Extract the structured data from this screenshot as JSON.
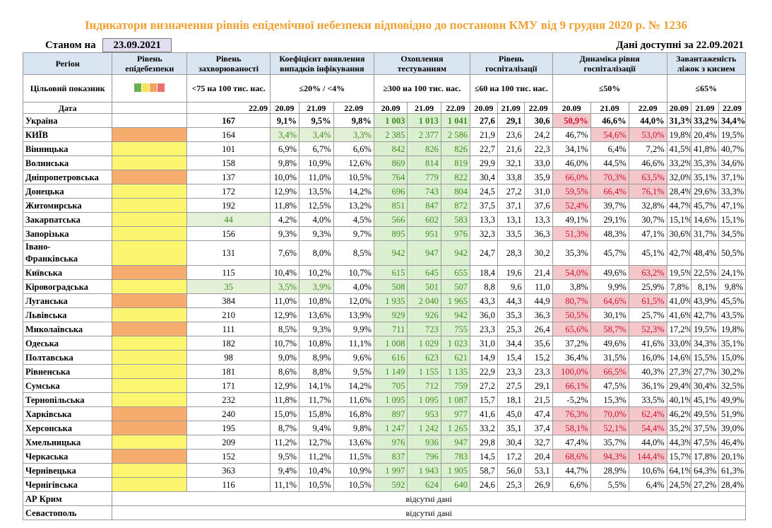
{
  "title": "Індикатори визначення рівнів епідемічної небезпеки відповідно до постанови КМУ від 9 грудня 2020 р. № 1236",
  "as_of_label": "Станом на",
  "as_of_date": "23.09.2021",
  "data_available": "Дані доступні за  22.09.2021",
  "headers": {
    "region": "Регіон",
    "level": "Рівень епідебезпеки",
    "incidence": "Рівень захворюваності",
    "detection": "Коефіцієнт виявлення випадків інфікування",
    "testing": "Охоплення тестуванням",
    "hosp": "Рівень госпіталізації",
    "hosp_dyn": "Динаміка рівня госпіталізації",
    "oxygen": "Завантаженість ліжок з киснем"
  },
  "targets": {
    "label": "Цільовий показник",
    "incidence": "<75 на 100 тис. нас.",
    "detection": "≤20% / <4%",
    "testing": "≥300 на 100 тис. нас.",
    "hosp": "≤60 на 100 тис. нас.",
    "hosp_dyn": "≤50%",
    "oxygen": "≤65%"
  },
  "legend_colors": [
    "#6ab04c",
    "#f2e55c",
    "#f4a460",
    "#e8706b"
  ],
  "dates": {
    "label": "Дата",
    "single": "22.09",
    "d1": "20.09",
    "d2": "21.09",
    "d3": "22.09"
  },
  "rows": [
    {
      "name": "Україна",
      "level": "",
      "lvl_class": "",
      "inc": "167",
      "det": [
        "9,1%",
        "9,5%",
        "9,8%"
      ],
      "test": [
        "1 003",
        "1 013",
        "1 041"
      ],
      "hosp": [
        "27,6",
        "29,1",
        "30,6"
      ],
      "dyn": [
        "50,9%",
        "46,6%",
        "44,0%"
      ],
      "oxy": [
        "31,3%",
        "33,2%",
        "34,4%"
      ]
    },
    {
      "name": "КИЇВ",
      "lvl_class": "orange",
      "inc": "164",
      "det": [
        "3,4%",
        "3,4%",
        "3,3%"
      ],
      "test": [
        "2 385",
        "2 377",
        "2 586"
      ],
      "hosp": [
        "21,9",
        "23,6",
        "24,2"
      ],
      "dyn": [
        "46,7%",
        "54,6%",
        "53,0%"
      ],
      "oxy": [
        "19,8%",
        "20,4%",
        "19,5%"
      ]
    },
    {
      "name": "Вінницька",
      "lvl_class": "yellow",
      "inc": "101",
      "det": [
        "6,9%",
        "6,7%",
        "6,6%"
      ],
      "test": [
        "842",
        "826",
        "826"
      ],
      "hosp": [
        "22,7",
        "21,6",
        "22,3"
      ],
      "dyn": [
        "34,1%",
        "6,4%",
        "7,2%"
      ],
      "oxy": [
        "41,5%",
        "41,8%",
        "40,7%"
      ]
    },
    {
      "name": "Волинська",
      "lvl_class": "yellow",
      "inc": "158",
      "det": [
        "9,8%",
        "10,9%",
        "12,6%"
      ],
      "test": [
        "869",
        "814",
        "819"
      ],
      "hosp": [
        "29,9",
        "32,1",
        "33,0"
      ],
      "dyn": [
        "46,0%",
        "44,5%",
        "46,6%"
      ],
      "oxy": [
        "33,2%",
        "35,3%",
        "34,6%"
      ]
    },
    {
      "name": "Дніпропетровська",
      "lvl_class": "orange",
      "inc": "137",
      "det": [
        "10,0%",
        "11,0%",
        "10,5%"
      ],
      "test": [
        "764",
        "779",
        "822"
      ],
      "hosp": [
        "30,4",
        "33,8",
        "35,9"
      ],
      "dyn": [
        "66,0%",
        "70,3%",
        "63,5%"
      ],
      "oxy": [
        "32,0%",
        "35,1%",
        "37,1%"
      ]
    },
    {
      "name": "Донецька",
      "lvl_class": "yellow",
      "inc": "172",
      "det": [
        "12,9%",
        "13,5%",
        "14,2%"
      ],
      "test": [
        "696",
        "743",
        "804"
      ],
      "hosp": [
        "24,5",
        "27,2",
        "31,0"
      ],
      "dyn": [
        "59,5%",
        "66,4%",
        "76,1%"
      ],
      "oxy": [
        "28,4%",
        "29,6%",
        "33,3%"
      ]
    },
    {
      "name": "Житомирська",
      "lvl_class": "yellow",
      "inc": "192",
      "det": [
        "11,8%",
        "12,5%",
        "13,2%"
      ],
      "test": [
        "851",
        "847",
        "872"
      ],
      "hosp": [
        "37,5",
        "37,1",
        "37,6"
      ],
      "dyn": [
        "52,4%",
        "39,7%",
        "32,8%"
      ],
      "oxy": [
        "44,7%",
        "45,7%",
        "47,1%"
      ]
    },
    {
      "name": "Закарпатська",
      "lvl_class": "yellow",
      "inc": "44",
      "det": [
        "4,2%",
        "4,0%",
        "4,5%"
      ],
      "test": [
        "566",
        "602",
        "583"
      ],
      "hosp": [
        "13,3",
        "13,1",
        "13,3"
      ],
      "dyn": [
        "49,1%",
        "29,1%",
        "30,7%"
      ],
      "oxy": [
        "15,1%",
        "14,6%",
        "15,1%"
      ]
    },
    {
      "name": "Запорізька",
      "lvl_class": "yellow",
      "inc": "156",
      "det": [
        "9,3%",
        "9,3%",
        "9,7%"
      ],
      "test": [
        "895",
        "951",
        "976"
      ],
      "hosp": [
        "32,3",
        "33,5",
        "36,3"
      ],
      "dyn": [
        "51,3%",
        "48,3%",
        "47,1%"
      ],
      "oxy": [
        "30,6%",
        "31,7%",
        "34,5%"
      ]
    },
    {
      "name": "Івано-Франківська",
      "lvl_class": "yellow",
      "inc": "131",
      "det": [
        "7,6%",
        "8,0%",
        "8,5%"
      ],
      "test": [
        "942",
        "947",
        "942"
      ],
      "hosp": [
        "24,7",
        "28,3",
        "30,2"
      ],
      "dyn": [
        "35,3%",
        "45,7%",
        "45,1%"
      ],
      "oxy": [
        "42,7%",
        "48,4%",
        "50,5%"
      ]
    },
    {
      "name": "Київська",
      "lvl_class": "orange",
      "inc": "115",
      "det": [
        "10,4%",
        "10,2%",
        "10,7%"
      ],
      "test": [
        "615",
        "645",
        "655"
      ],
      "hosp": [
        "18,4",
        "19,6",
        "21,4"
      ],
      "dyn": [
        "54,0%",
        "49,6%",
        "63,2%"
      ],
      "oxy": [
        "19,5%",
        "22,5%",
        "24,1%"
      ]
    },
    {
      "name": "Кіровоградська",
      "lvl_class": "yellow",
      "inc": "35",
      "det": [
        "3,5%",
        "3,9%",
        "4,0%"
      ],
      "test": [
        "508",
        "501",
        "507"
      ],
      "hosp": [
        "8,8",
        "9,6",
        "11,0"
      ],
      "dyn": [
        "3,8%",
        "9,9%",
        "25,9%"
      ],
      "oxy": [
        "7,8%",
        "8,1%",
        "9,8%"
      ]
    },
    {
      "name": "Луганська",
      "lvl_class": "orange",
      "inc": "384",
      "det": [
        "11,0%",
        "10,8%",
        "12,0%"
      ],
      "test": [
        "1 935",
        "2 040",
        "1 965"
      ],
      "hosp": [
        "43,3",
        "44,3",
        "44,9"
      ],
      "dyn": [
        "80,7%",
        "64,6%",
        "61,5%"
      ],
      "oxy": [
        "41,0%",
        "43,9%",
        "45,5%"
      ]
    },
    {
      "name": "Львівська",
      "lvl_class": "yellow",
      "inc": "210",
      "det": [
        "12,9%",
        "13,6%",
        "13,9%"
      ],
      "test": [
        "929",
        "926",
        "942"
      ],
      "hosp": [
        "36,0",
        "35,3",
        "36,3"
      ],
      "dyn": [
        "50,5%",
        "30,1%",
        "25,7%"
      ],
      "oxy": [
        "41,6%",
        "42,7%",
        "43,5%"
      ]
    },
    {
      "name": "Миколаївська",
      "lvl_class": "orange",
      "inc": "111",
      "det": [
        "8,5%",
        "9,3%",
        "9,9%"
      ],
      "test": [
        "711",
        "723",
        "755"
      ],
      "hosp": [
        "23,3",
        "25,3",
        "26,4"
      ],
      "dyn": [
        "65,6%",
        "58,7%",
        "52,3%"
      ],
      "oxy": [
        "17,2%",
        "19,5%",
        "19,8%"
      ]
    },
    {
      "name": "Одеська",
      "lvl_class": "yellow",
      "inc": "182",
      "det": [
        "10,7%",
        "10,8%",
        "11,1%"
      ],
      "test": [
        "1 008",
        "1 029",
        "1 023"
      ],
      "hosp": [
        "31,0",
        "34,4",
        "35,6"
      ],
      "dyn": [
        "37,2%",
        "49,6%",
        "41,6%"
      ],
      "oxy": [
        "33,0%",
        "34,3%",
        "35,1%"
      ]
    },
    {
      "name": "Полтавська",
      "lvl_class": "yellow",
      "inc": "98",
      "det": [
        "9,0%",
        "8,9%",
        "9,6%"
      ],
      "test": [
        "616",
        "623",
        "621"
      ],
      "hosp": [
        "14,9",
        "15,4",
        "15,2"
      ],
      "dyn": [
        "36,4%",
        "31,5%",
        "16,0%"
      ],
      "oxy": [
        "14,6%",
        "15,5%",
        "15,0%"
      ]
    },
    {
      "name": "Рівненська",
      "lvl_class": "yellow",
      "inc": "181",
      "det": [
        "8,6%",
        "8,8%",
        "9,5%"
      ],
      "test": [
        "1 149",
        "1 155",
        "1 135"
      ],
      "hosp": [
        "22,9",
        "23,3",
        "23,3"
      ],
      "dyn": [
        "100,0%",
        "66,5%",
        "40,3%"
      ],
      "oxy": [
        "27,3%",
        "27,7%",
        "30,2%"
      ]
    },
    {
      "name": "Сумська",
      "lvl_class": "yellow",
      "inc": "171",
      "det": [
        "12,9%",
        "14,1%",
        "14,2%"
      ],
      "test": [
        "705",
        "712",
        "759"
      ],
      "hosp": [
        "27,2",
        "27,5",
        "29,1"
      ],
      "dyn": [
        "66,1%",
        "47,5%",
        "36,1%"
      ],
      "oxy": [
        "29,4%",
        "30,4%",
        "32,5%"
      ]
    },
    {
      "name": "Тернопільська",
      "lvl_class": "yellow",
      "inc": "232",
      "det": [
        "11,8%",
        "11,7%",
        "11,6%"
      ],
      "test": [
        "1 095",
        "1 095",
        "1 087"
      ],
      "hosp": [
        "15,7",
        "18,1",
        "21,5"
      ],
      "dyn": [
        "-5,2%",
        "15,3%",
        "33,5%"
      ],
      "oxy": [
        "40,1%",
        "45,1%",
        "49,9%"
      ]
    },
    {
      "name": "Харківська",
      "lvl_class": "orange",
      "inc": "240",
      "det": [
        "15,0%",
        "15,8%",
        "16,8%"
      ],
      "test": [
        "897",
        "953",
        "977"
      ],
      "hosp": [
        "41,6",
        "45,0",
        "47,4"
      ],
      "dyn": [
        "76,3%",
        "70,0%",
        "62,4%"
      ],
      "oxy": [
        "46,2%",
        "49,5%",
        "51,9%"
      ]
    },
    {
      "name": "Херсонська",
      "lvl_class": "orange",
      "inc": "195",
      "det": [
        "8,7%",
        "9,4%",
        "9,8%"
      ],
      "test": [
        "1 247",
        "1 242",
        "1 265"
      ],
      "hosp": [
        "33,2",
        "35,1",
        "37,4"
      ],
      "dyn": [
        "58,1%",
        "52,1%",
        "54,4%"
      ],
      "oxy": [
        "35,2%",
        "37,5%",
        "39,0%"
      ]
    },
    {
      "name": "Хмельницька",
      "lvl_class": "yellow",
      "inc": "209",
      "det": [
        "11,2%",
        "12,7%",
        "13,6%"
      ],
      "test": [
        "976",
        "936",
        "947"
      ],
      "hosp": [
        "29,8",
        "30,4",
        "32,7"
      ],
      "dyn": [
        "47,4%",
        "35,7%",
        "44,0%"
      ],
      "oxy": [
        "44,3%",
        "47,5%",
        "46,4%"
      ]
    },
    {
      "name": "Черкаська",
      "lvl_class": "orange",
      "inc": "152",
      "det": [
        "9,5%",
        "11,2%",
        "11,5%"
      ],
      "test": [
        "837",
        "796",
        "783"
      ],
      "hosp": [
        "14,5",
        "17,2",
        "20,4"
      ],
      "dyn": [
        "68,6%",
        "94,3%",
        "144,4%"
      ],
      "oxy": [
        "15,7%",
        "17,8%",
        "20,1%"
      ]
    },
    {
      "name": "Чернівецька",
      "lvl_class": "yellow",
      "inc": "363",
      "det": [
        "9,4%",
        "10,4%",
        "10,9%"
      ],
      "test": [
        "1 997",
        "1 943",
        "1 905"
      ],
      "hosp": [
        "58,7",
        "56,0",
        "53,1"
      ],
      "dyn": [
        "44,7%",
        "28,9%",
        "10,6%"
      ],
      "oxy": [
        "64,1%",
        "64,3%",
        "61,3%"
      ]
    },
    {
      "name": "Чернігівська",
      "lvl_class": "yellow",
      "inc": "116",
      "det": [
        "11,1%",
        "10,5%",
        "10,5%"
      ],
      "test": [
        "592",
        "624",
        "640"
      ],
      "hosp": [
        "24,6",
        "25,3",
        "26,9"
      ],
      "dyn": [
        "6,6%",
        "5,5%",
        "6,4%"
      ],
      "oxy": [
        "24,5%",
        "27,2%",
        "28,4%"
      ]
    }
  ],
  "missing_rows": [
    {
      "name": "АР Крим",
      "text": "відсутні дані"
    },
    {
      "name": "Севастополь",
      "text": "відсутні дані"
    }
  ]
}
